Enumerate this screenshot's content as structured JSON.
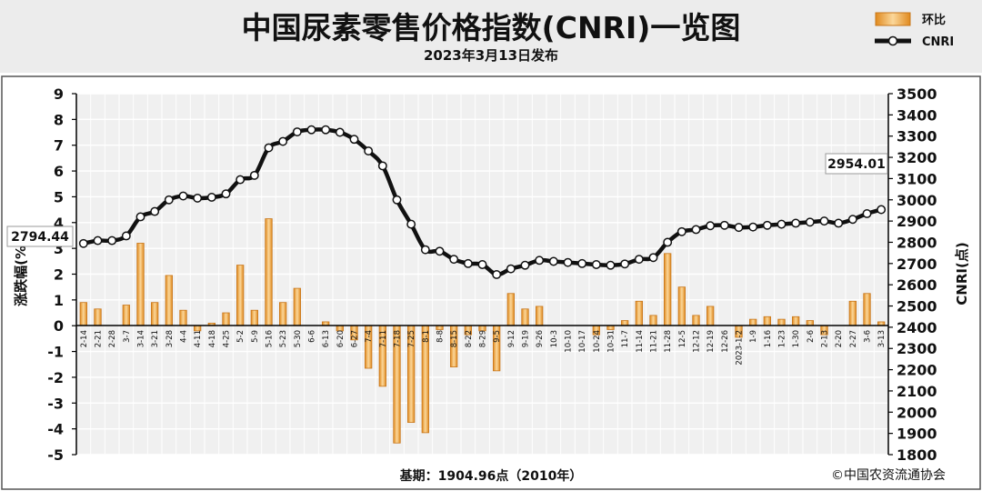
{
  "chart_data": {
    "type": "bar+line",
    "title": "中国尿素零售价格指数(CNRI)一览图",
    "subtitle": "2023年3月13日发布",
    "legend": {
      "placement": "top-right",
      "bar_label": "环比",
      "line_label": "CNRI"
    },
    "left_axis": {
      "label": "涨跌幅(%)",
      "ylim": [
        -5,
        9
      ],
      "ticks": [
        "-5",
        "-4",
        "-3",
        "-2",
        "-1",
        "0",
        "1",
        "2",
        "3",
        "4",
        "5",
        "6",
        "7",
        "8",
        "9"
      ]
    },
    "right_axis": {
      "label": "CNRI(点)",
      "ylim": [
        1800,
        3500
      ],
      "ticks": [
        "1800",
        "1900",
        "2000",
        "2100",
        "2200",
        "2300",
        "2400",
        "2500",
        "2600",
        "2700",
        "2800",
        "2900",
        "3000",
        "3100",
        "3200",
        "3300",
        "3400",
        "3500"
      ]
    },
    "grid": true,
    "categories": [
      "2-14",
      "2-21",
      "2-28",
      "3-7",
      "3-14",
      "3-21",
      "3-28",
      "4-4",
      "4-11",
      "4-18",
      "4-25",
      "5-2",
      "5-9",
      "5-16",
      "5-23",
      "5-30",
      "6-6",
      "6-13",
      "6-20",
      "6-27",
      "7-4",
      "7-11",
      "7-18",
      "7-25",
      "8-1",
      "8-8",
      "8-15",
      "8-22",
      "8-29",
      "9-5",
      "9-12",
      "9-19",
      "9-26",
      "10-3",
      "10-10",
      "10-17",
      "10-24",
      "10-31",
      "11-7",
      "11-14",
      "11-21",
      "11-28",
      "12-5",
      "12-12",
      "12-19",
      "12-26",
      "2023-1-2",
      "1-9",
      "1-16",
      "1-23",
      "1-30",
      "2-6",
      "2-13",
      "2-20",
      "2-27",
      "3-6",
      "3-13"
    ],
    "series": [
      {
        "name": "环比",
        "axis": "left",
        "values": [
          0.9,
          0.65,
          0,
          0.8,
          3.2,
          0.9,
          1.95,
          0.6,
          -0.2,
          0.1,
          0.5,
          2.35,
          0.6,
          4.15,
          0.9,
          1.45,
          0,
          0.15,
          -0.2,
          -0.55,
          -1.65,
          -2.35,
          -4.55,
          -3.75,
          -4.15,
          -0.15,
          -1.6,
          -0.35,
          -0.2,
          -1.75,
          1.25,
          0.65,
          0.75,
          0,
          0,
          0,
          -0.35,
          -0.15,
          0.2,
          0.95,
          0.4,
          2.8,
          1.5,
          0.4,
          0.75,
          0,
          -0.45,
          0.25,
          0.35,
          0.25,
          0.35,
          0.2,
          -0.35,
          0,
          0.95,
          1.25,
          0.15
        ]
      },
      {
        "name": "CNRI",
        "axis": "right",
        "values": [
          2794.44,
          2808,
          2808,
          2830,
          2920,
          2945,
          3000,
          3018,
          3008,
          3012,
          3028,
          3095,
          3115,
          3245,
          3275,
          3320,
          3330,
          3330,
          3318,
          3285,
          3230,
          3160,
          3000,
          2885,
          2765,
          2758,
          2720,
          2700,
          2695,
          2648,
          2675,
          2692,
          2715,
          2710,
          2705,
          2700,
          2695,
          2692,
          2698,
          2720,
          2728,
          2800,
          2850,
          2860,
          2878,
          2880,
          2870,
          2872,
          2880,
          2885,
          2890,
          2895,
          2900,
          2890,
          2908,
          2935,
          2954.01
        ]
      }
    ],
    "annotations": [
      "2794.44",
      "2954.01"
    ],
    "footer": {
      "base": "基期：1904.96点（2010年）",
      "source": "©中国农资流通协会"
    }
  }
}
